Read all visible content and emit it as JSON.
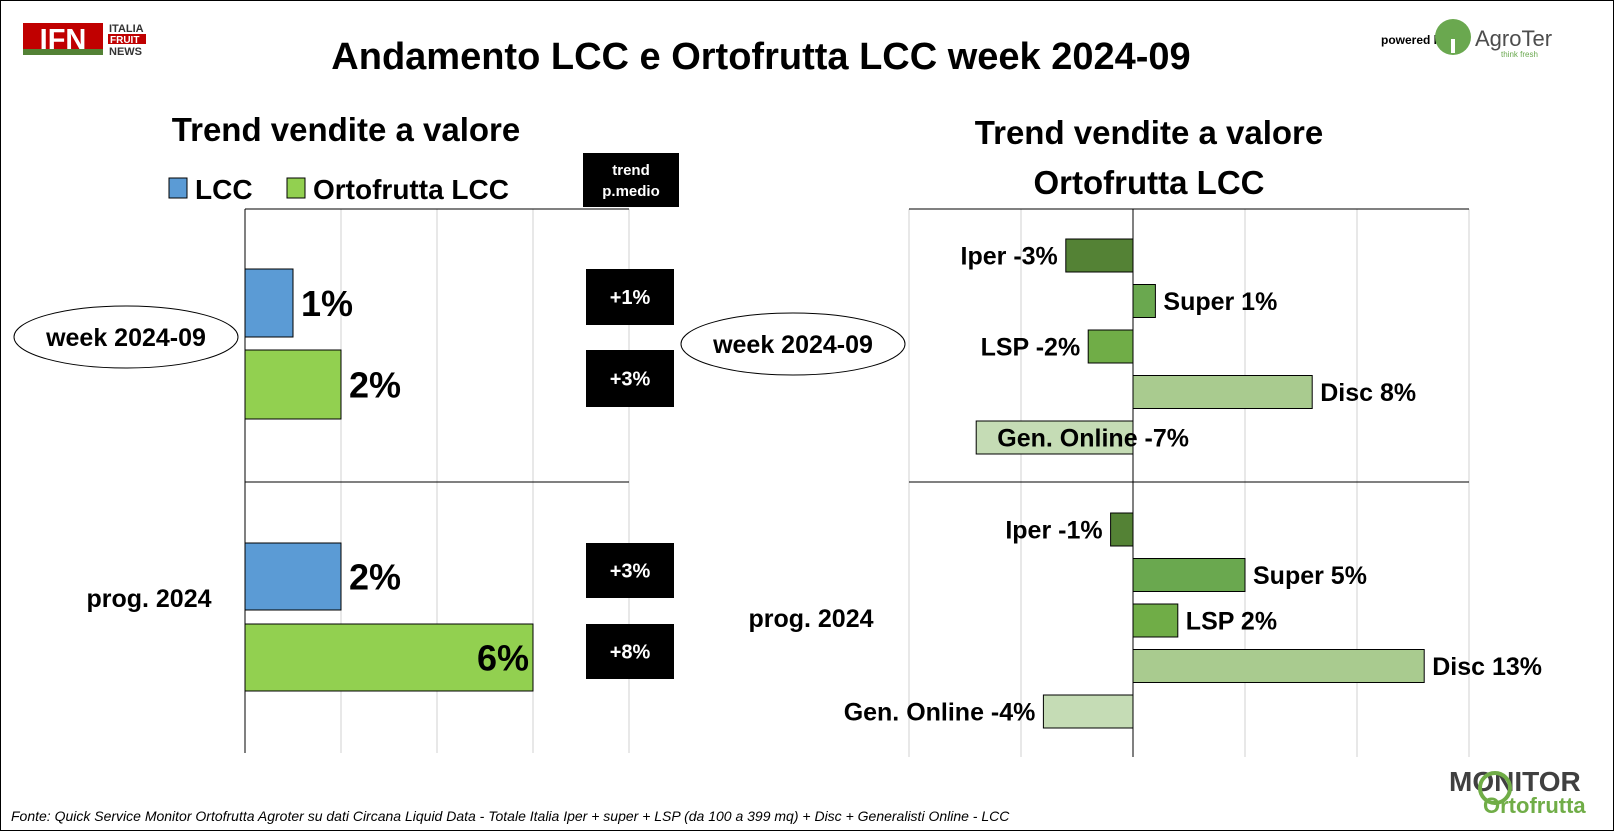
{
  "header": {
    "title": "Andamento LCC e Ortofrutta LCC week 2024-09",
    "logo_left": {
      "mark": "IFN",
      "line1": "ITALIA",
      "line2": "FRUIT",
      "line3": "NEWS"
    },
    "powered_by": "powered by",
    "logo_right": {
      "name": "AgroTer",
      "tagline": "think fresh"
    }
  },
  "footer": {
    "source": "Fonte: Quick Service Monitor Ortofrutta Agroter su dati Circana Liquid Data - Totale Italia Iper + super + LSP (da 100 a 399 mq) + Disc + Generalisti Online - LCC",
    "logo": {
      "line1": "MONITOR",
      "line2": "Ortofrutta"
    }
  },
  "chart_data": [
    {
      "type": "bar",
      "orientation": "horizontal",
      "title": "Trend vendite a valore",
      "legend": [
        "LCC",
        "Ortofrutta LCC"
      ],
      "colors": {
        "LCC": "#5b9bd5",
        "Ortofrutta LCC": "#92d050"
      },
      "groups": [
        {
          "label": "week 2024-09",
          "circled": true,
          "bars": [
            {
              "series": "LCC",
              "value": 1,
              "label": "1%"
            },
            {
              "series": "Ortofrutta LCC",
              "value": 2,
              "label": "2%"
            }
          ]
        },
        {
          "label": "prog. 2024",
          "circled": false,
          "bars": [
            {
              "series": "LCC",
              "value": 2,
              "label": "2%"
            },
            {
              "series": "Ortofrutta LCC",
              "value": 6,
              "label": "6%"
            }
          ]
        }
      ],
      "price_trend": {
        "header_line1": "trend",
        "header_line2": "p.medio",
        "values": [
          [
            "+1%",
            "+3%"
          ],
          [
            "+3%",
            "+8%"
          ]
        ]
      },
      "xlim": [
        0,
        8
      ],
      "grid": true
    },
    {
      "type": "bar",
      "orientation": "horizontal",
      "title_line1": "Trend vendite a valore",
      "title_line2": "Ortofrutta LCC",
      "colors": {
        "Iper": "#548235",
        "Super": "#6aa84f",
        "LSP": "#70ad47",
        "Disc": "#a9cb8f",
        "Gen. Online": "#c5dcb5"
      },
      "groups": [
        {
          "label": "week 2024-09",
          "circled": true,
          "bars": [
            {
              "category": "Iper",
              "value": -3,
              "label": "Iper -3%"
            },
            {
              "category": "Super",
              "value": 1,
              "label": "Super 1%"
            },
            {
              "category": "LSP",
              "value": -2,
              "label": "LSP -2%"
            },
            {
              "category": "Disc",
              "value": 8,
              "label": "Disc 8%"
            },
            {
              "category": "Gen. Online",
              "value": -7,
              "label": "Gen. Online -7%"
            }
          ]
        },
        {
          "label": "prog. 2024",
          "circled": false,
          "bars": [
            {
              "category": "Iper",
              "value": -1,
              "label": "Iper -1%"
            },
            {
              "category": "Super",
              "value": 5,
              "label": "Super 5%"
            },
            {
              "category": "LSP",
              "value": 2,
              "label": "LSP 2%"
            },
            {
              "category": "Disc",
              "value": 13,
              "label": "Disc 13%"
            },
            {
              "category": "Gen. Online",
              "value": -4,
              "label": "Gen. Online -4%"
            }
          ]
        }
      ],
      "xlim": [
        -10,
        15
      ],
      "grid": true
    }
  ]
}
